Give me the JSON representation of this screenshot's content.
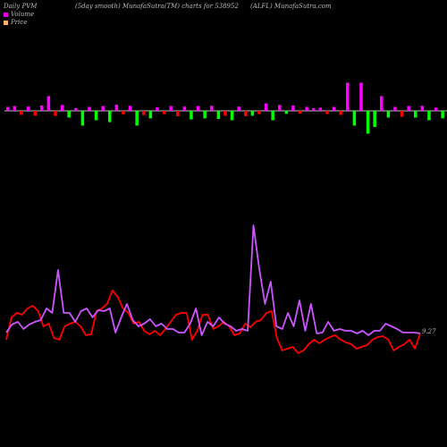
{
  "header": {
    "left": "Daily PVM",
    "center": "(5day smooth) MunafaSutra(TM) charts for 538952",
    "right": "(ALFL) MunafaSutra.com"
  },
  "legend": [
    {
      "label": "Volume",
      "color": "#e000e0"
    },
    {
      "label": "Price",
      "color": "#ffb070"
    }
  ],
  "last_value_label": "9.27",
  "chart_data": [
    {
      "type": "bar",
      "baseline_color": "#ffffff",
      "colors": {
        "up": "#ff00ff",
        "down": "#ff0000",
        "green": "#00ff00"
      },
      "values": [
        1.5,
        1.8,
        -1.5,
        1.6,
        -1.8,
        2.0,
        5.5,
        -1.9,
        2.2,
        -2.5,
        1.0,
        -5.5,
        1.5,
        -3.5,
        1.8,
        -4.2,
        2.3,
        -1.3,
        1.9,
        -5.5,
        -1.6,
        -2.8,
        1.3,
        -1.2,
        1.8,
        -2.0,
        1.6,
        -3.2,
        1.8,
        -2.8,
        1.9,
        -3.0,
        -1.8,
        -3.5,
        1.6,
        -2.0,
        -1.8,
        -1.2,
        2.8,
        -3.5,
        2.2,
        -1.1,
        2.0,
        -1.0,
        1.5,
        1.0,
        1.2,
        -1.2,
        1.5,
        -1.5,
        10.5,
        -5.5,
        10.5,
        -8.5,
        -6.0,
        5.5,
        -2.5,
        1.5,
        -2.2,
        1.8,
        -2.5,
        1.9,
        -3.5,
        1.2,
        -2.8,
        -1.5,
        1.5,
        -1.3,
        -1.5,
        -1.2,
        1.2,
        -1.8,
        1.2,
        -2.5,
        -1.3,
        1.5,
        -2.0,
        1.8,
        -4.5
      ]
    },
    {
      "type": "line",
      "series": [
        {
          "color": "#ff0000",
          "values": [
            380,
            355,
            350,
            352,
            345,
            342,
            348,
            365,
            362,
            378,
            380,
            365,
            362,
            360,
            365,
            375,
            374,
            348,
            345,
            340,
            325,
            332,
            345,
            350,
            362,
            360,
            370,
            374,
            370,
            375,
            368,
            360,
            352,
            350,
            350,
            380,
            370,
            352,
            352,
            368,
            365,
            360,
            365,
            375,
            373,
            362,
            366,
            360,
            358,
            350,
            348,
            378,
            392,
            390,
            388,
            395,
            392,
            385,
            380,
            384,
            380,
            377,
            375,
            380,
            383,
            385,
            390,
            388,
            386,
            380,
            377,
            376,
            380,
            392,
            388,
            385,
            380,
            390,
            373
          ]
        },
        {
          "color": "#cc55ff",
          "values": [
            372,
            363,
            360,
            368,
            363,
            360,
            358,
            345,
            350,
            302,
            350,
            350,
            360,
            348,
            345,
            355,
            347,
            348,
            345,
            372,
            355,
            340,
            358,
            365,
            362,
            357,
            365,
            362,
            368,
            368,
            372,
            372,
            362,
            345,
            375,
            360,
            365,
            355,
            362,
            365,
            370,
            368,
            370,
            252,
            300,
            340,
            315,
            365,
            368,
            350,
            365,
            336,
            370,
            340,
            373,
            372,
            360,
            370,
            368,
            370,
            370,
            373,
            370,
            375,
            370,
            370,
            362,
            365,
            368,
            372,
            372,
            372,
            373
          ]
        }
      ]
    }
  ]
}
